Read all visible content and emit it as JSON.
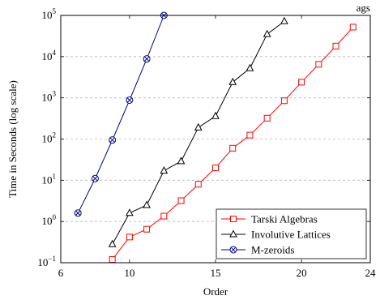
{
  "chart_data": {
    "type": "line",
    "title": "ags",
    "xlabel": "Order",
    "ylabel": "Time in Seconds (log scale)",
    "xlim": [
      6,
      24
    ],
    "ylim": [
      0.1,
      100000
    ],
    "yscale": "log",
    "x_ticks": [
      6,
      10,
      15,
      20,
      24
    ],
    "y_ticks": [
      {
        "value": 0.1,
        "label": "10",
        "exp": "−1"
      },
      {
        "value": 1,
        "label": "10",
        "exp": "0"
      },
      {
        "value": 10,
        "label": "10",
        "exp": "1"
      },
      {
        "value": 100,
        "label": "10",
        "exp": "2"
      },
      {
        "value": 1000,
        "label": "10",
        "exp": "3"
      },
      {
        "value": 10000,
        "label": "10",
        "exp": "4"
      },
      {
        "value": 100000,
        "label": "10",
        "exp": "5"
      }
    ],
    "grid": "horizontal-dashed",
    "legend_position": "bottom-right",
    "series": [
      {
        "name": "Tarski Algebras",
        "color": "#ff0000",
        "marker": "square",
        "x": [
          9,
          10,
          11,
          12,
          13,
          14,
          15,
          16,
          17,
          18,
          19,
          20,
          21,
          22,
          23
        ],
        "y": [
          0.12,
          0.42,
          0.65,
          1.35,
          3.2,
          8,
          20,
          60,
          125,
          320,
          850,
          2400,
          6500,
          18000,
          52000
        ]
      },
      {
        "name": "Involutive Lattices",
        "color": "#000000",
        "marker": "triangle",
        "x": [
          9,
          10,
          11,
          12,
          13,
          14,
          15,
          16,
          17,
          18,
          19
        ],
        "y": [
          0.28,
          1.6,
          2.5,
          17,
          29,
          190,
          360,
          2400,
          5200,
          35000,
          72000
        ]
      },
      {
        "name": "M-zeroids",
        "color": "#00008b",
        "marker": "circle-x",
        "x": [
          7,
          8,
          9,
          10,
          11,
          12
        ],
        "y": [
          1.6,
          11,
          95,
          880,
          8800,
          100000
        ]
      }
    ]
  }
}
